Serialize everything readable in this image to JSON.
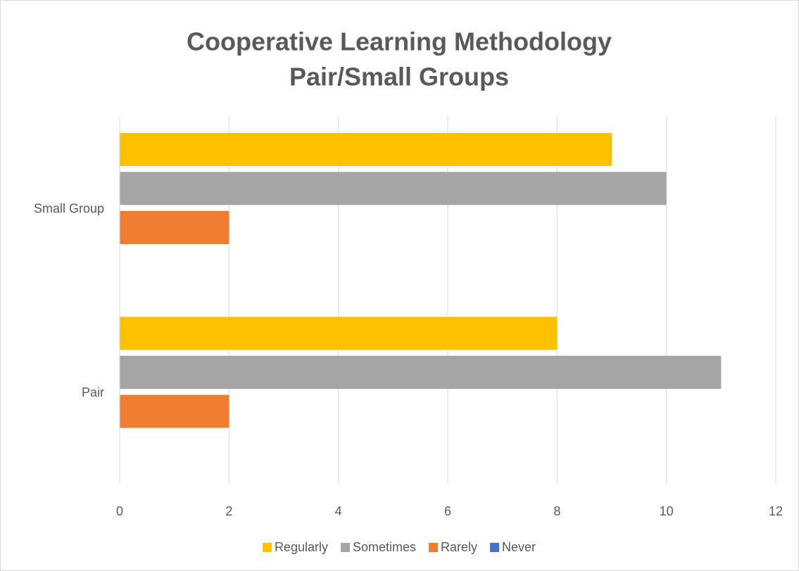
{
  "chart_data": {
    "type": "bar",
    "orientation": "horizontal",
    "title": [
      "Cooperative Learning Methodology",
      "Pair/Small Groups"
    ],
    "categories": [
      "Pair",
      "Small Group"
    ],
    "series": [
      {
        "name": "Regularly",
        "color": "#FFC000",
        "values": [
          8,
          9
        ]
      },
      {
        "name": "Sometimes",
        "color": "#A5A5A5",
        "values": [
          11,
          10
        ]
      },
      {
        "name": "Rarely",
        "color": "#ED7D31",
        "values": [
          2,
          2
        ]
      },
      {
        "name": "Never",
        "color": "#4472C4",
        "values": [
          0,
          0
        ]
      }
    ],
    "xlim": [
      0,
      12
    ],
    "xticks": [
      0,
      2,
      4,
      6,
      8,
      10,
      12
    ],
    "grid": true,
    "legend": "bottom"
  }
}
